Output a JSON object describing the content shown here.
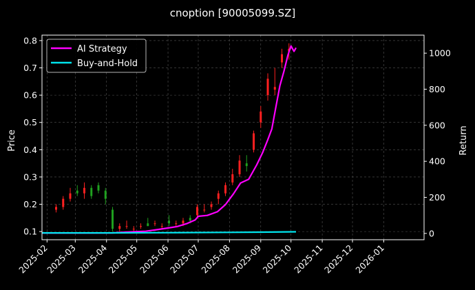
{
  "chart_data": {
    "type": "line",
    "title": "cnoption [90005099.SZ]",
    "ylabel_left": "Price",
    "ylabel_right": "Return",
    "xlabel": "",
    "x_ticks": [
      "2025-02",
      "2025-03",
      "2025-04",
      "2025-05",
      "2025-06",
      "2025-07",
      "2025-08",
      "2025-09",
      "2025-10",
      "2025-11",
      "2025-12",
      "2026-01"
    ],
    "y_left_ticks": [
      "0.1",
      "0.2",
      "0.3",
      "0.4",
      "0.5",
      "0.6",
      "0.7",
      "0.8"
    ],
    "y_right_ticks": [
      "0",
      "200",
      "400",
      "600",
      "800",
      "1000"
    ],
    "ylim_left": [
      0.07,
      0.82
    ],
    "ylim_right": [
      -35,
      1100
    ],
    "xlim": [
      "2025-01-27",
      "2026-02-10"
    ],
    "grid": true,
    "legend_position": "top-left",
    "colors": {
      "background": "#000000",
      "ai_strategy": "#ff00ff",
      "buy_and_hold": "#00e5ee",
      "candle_up": "#ff2020",
      "candle_down": "#1fa01f",
      "grid": "#555555"
    },
    "series": [
      {
        "name": "AI Strategy",
        "axis": "right",
        "points": [
          [
            "2025-01-27",
            2
          ],
          [
            "2025-02-15",
            2
          ],
          [
            "2025-03-15",
            2
          ],
          [
            "2025-04-07",
            3
          ],
          [
            "2025-04-20",
            7
          ],
          [
            "2025-05-01",
            10
          ],
          [
            "2025-05-10",
            12
          ],
          [
            "2025-05-20",
            20
          ],
          [
            "2025-06-01",
            30
          ],
          [
            "2025-06-10",
            38
          ],
          [
            "2025-06-20",
            55
          ],
          [
            "2025-06-28",
            75
          ],
          [
            "2025-07-01",
            95
          ],
          [
            "2025-07-10",
            100
          ],
          [
            "2025-07-20",
            120
          ],
          [
            "2025-07-28",
            160
          ],
          [
            "2025-08-05",
            220
          ],
          [
            "2025-08-12",
            280
          ],
          [
            "2025-08-20",
            300
          ],
          [
            "2025-08-28",
            380
          ],
          [
            "2025-09-03",
            450
          ],
          [
            "2025-09-08",
            520
          ],
          [
            "2025-09-12",
            580
          ],
          [
            "2025-09-16",
            700
          ],
          [
            "2025-09-20",
            820
          ],
          [
            "2025-09-24",
            900
          ],
          [
            "2025-09-28",
            990
          ],
          [
            "2025-10-01",
            1040
          ],
          [
            "2025-10-04",
            1010
          ],
          [
            "2025-10-06",
            1030
          ]
        ]
      },
      {
        "name": "Buy-and-Hold",
        "axis": "right",
        "points": [
          [
            "2025-01-27",
            3
          ],
          [
            "2025-04-01",
            3
          ],
          [
            "2025-06-01",
            4
          ],
          [
            "2025-08-01",
            6
          ],
          [
            "2025-09-01",
            7
          ],
          [
            "2025-10-06",
            9
          ]
        ]
      }
    ],
    "candles": [
      [
        "2025-02-10",
        0.18,
        0.2,
        0.17,
        0.19
      ],
      [
        "2025-02-17",
        0.19,
        0.23,
        0.18,
        0.22
      ],
      [
        "2025-02-24",
        0.22,
        0.26,
        0.21,
        0.24
      ],
      [
        "2025-03-03",
        0.25,
        0.27,
        0.23,
        0.24
      ],
      [
        "2025-03-10",
        0.24,
        0.28,
        0.22,
        0.26
      ],
      [
        "2025-03-17",
        0.26,
        0.27,
        0.22,
        0.23
      ],
      [
        "2025-03-24",
        0.27,
        0.28,
        0.24,
        0.25
      ],
      [
        "2025-03-31",
        0.25,
        0.26,
        0.2,
        0.22
      ],
      [
        "2025-04-07",
        0.18,
        0.19,
        0.1,
        0.11
      ],
      [
        "2025-04-14",
        0.11,
        0.13,
        0.1,
        0.12
      ],
      [
        "2025-04-21",
        0.12,
        0.14,
        0.11,
        0.12
      ],
      [
        "2025-04-28",
        0.11,
        0.12,
        0.1,
        0.11
      ],
      [
        "2025-05-05",
        0.12,
        0.13,
        0.11,
        0.12
      ],
      [
        "2025-05-12",
        0.13,
        0.15,
        0.12,
        0.12
      ],
      [
        "2025-05-19",
        0.13,
        0.14,
        0.12,
        0.13
      ],
      [
        "2025-05-26",
        0.12,
        0.13,
        0.11,
        0.12
      ],
      [
        "2025-06-02",
        0.14,
        0.16,
        0.12,
        0.13
      ],
      [
        "2025-06-09",
        0.13,
        0.14,
        0.12,
        0.13
      ],
      [
        "2025-06-16",
        0.13,
        0.15,
        0.12,
        0.14
      ],
      [
        "2025-06-23",
        0.15,
        0.16,
        0.13,
        0.14
      ],
      [
        "2025-06-30",
        0.16,
        0.2,
        0.15,
        0.19
      ],
      [
        "2025-07-07",
        0.18,
        0.2,
        0.17,
        0.18
      ],
      [
        "2025-07-14",
        0.19,
        0.21,
        0.18,
        0.2
      ],
      [
        "2025-07-21",
        0.22,
        0.25,
        0.2,
        0.24
      ],
      [
        "2025-07-28",
        0.24,
        0.28,
        0.23,
        0.27
      ],
      [
        "2025-08-04",
        0.28,
        0.33,
        0.27,
        0.31
      ],
      [
        "2025-08-11",
        0.31,
        0.38,
        0.3,
        0.36
      ],
      [
        "2025-08-18",
        0.35,
        0.38,
        0.32,
        0.34
      ],
      [
        "2025-08-25",
        0.4,
        0.47,
        0.39,
        0.46
      ],
      [
        "2025-09-01",
        0.5,
        0.56,
        0.48,
        0.54
      ],
      [
        "2025-09-08",
        0.6,
        0.68,
        0.58,
        0.66
      ],
      [
        "2025-09-15",
        0.62,
        0.7,
        0.6,
        0.63
      ],
      [
        "2025-09-22",
        0.72,
        0.77,
        0.7,
        0.75
      ],
      [
        "2025-09-29",
        0.76,
        0.79,
        0.73,
        0.77
      ]
    ]
  }
}
